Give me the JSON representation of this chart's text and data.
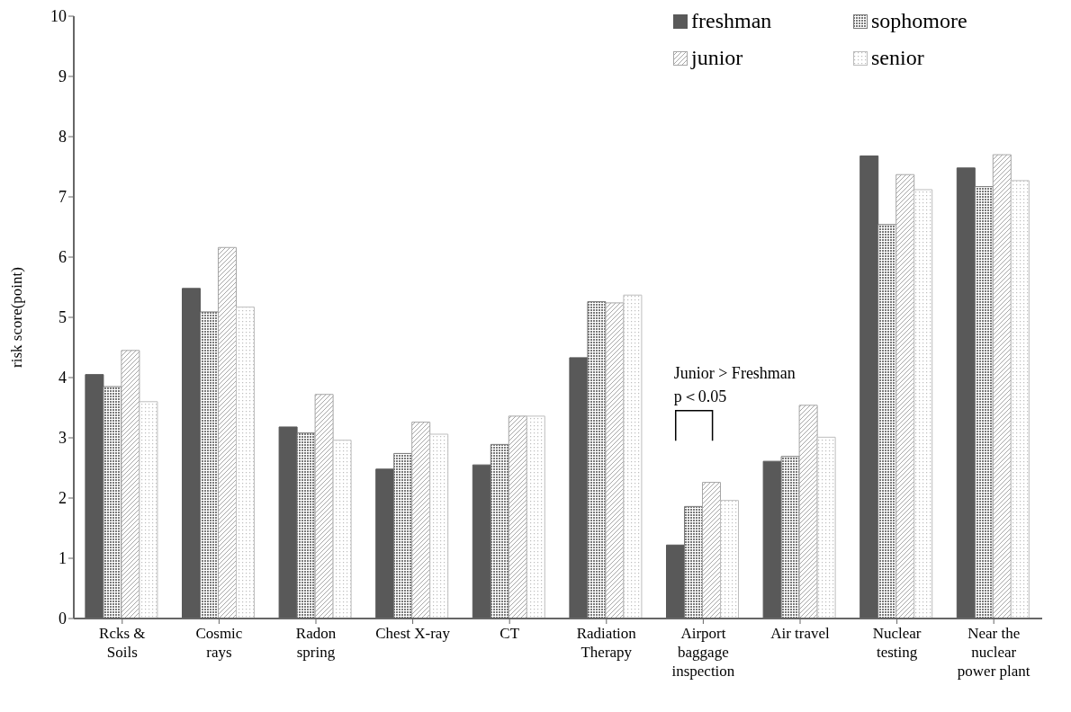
{
  "chart_data": {
    "type": "bar",
    "ylabel": "risk score(point)",
    "categories": [
      "Rcks &\nSoils",
      "Cosmic\nrays",
      "Radon\nspring",
      "Chest X-ray",
      "CT",
      "Radiation\nTherapy",
      "Airport\nbaggage\ninspection",
      "Air travel",
      "Nuclear\ntesting",
      "Near the\nnuclear\npower plant"
    ],
    "series": [
      {
        "name": "freshman",
        "color": "#595959",
        "values": [
          4.05,
          5.48,
          3.18,
          2.48,
          2.55,
          4.33,
          1.22,
          2.61,
          7.68,
          7.48
        ]
      },
      {
        "name": "sophomore",
        "color": "#7a7a7a",
        "values": [
          3.85,
          5.09,
          3.08,
          2.74,
          2.89,
          5.26,
          1.86,
          2.69,
          6.54,
          7.17
        ]
      },
      {
        "name": "junior",
        "color": "#a6a6a6",
        "values": [
          4.45,
          6.16,
          3.72,
          3.26,
          3.36,
          5.24,
          2.26,
          3.54,
          7.37,
          7.7
        ]
      },
      {
        "name": "senior",
        "color": "#bdbdbd",
        "values": [
          3.6,
          5.17,
          2.96,
          3.06,
          3.36,
          5.37,
          1.96,
          3.01,
          7.12,
          7.27
        ]
      }
    ],
    "ylim": [
      0,
      10
    ],
    "yticks": [
      0,
      1,
      2,
      3,
      4,
      5,
      6,
      7,
      8,
      9,
      10
    ],
    "grid": false,
    "legend": "top right",
    "annotations": [
      "Junior > Freshman",
      "p＜0.05"
    ]
  }
}
